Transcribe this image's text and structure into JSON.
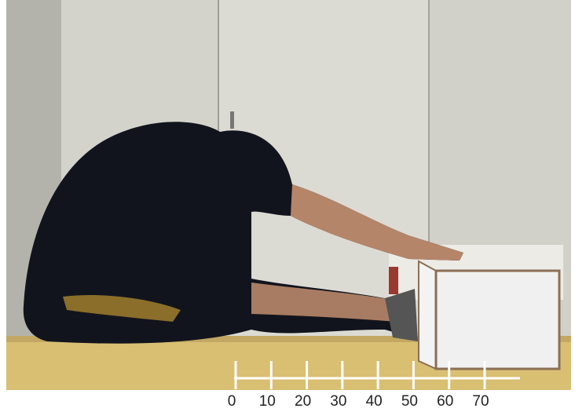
{
  "ruler": {
    "ticks": [
      0,
      10,
      20,
      30,
      40,
      50,
      60,
      70
    ]
  }
}
